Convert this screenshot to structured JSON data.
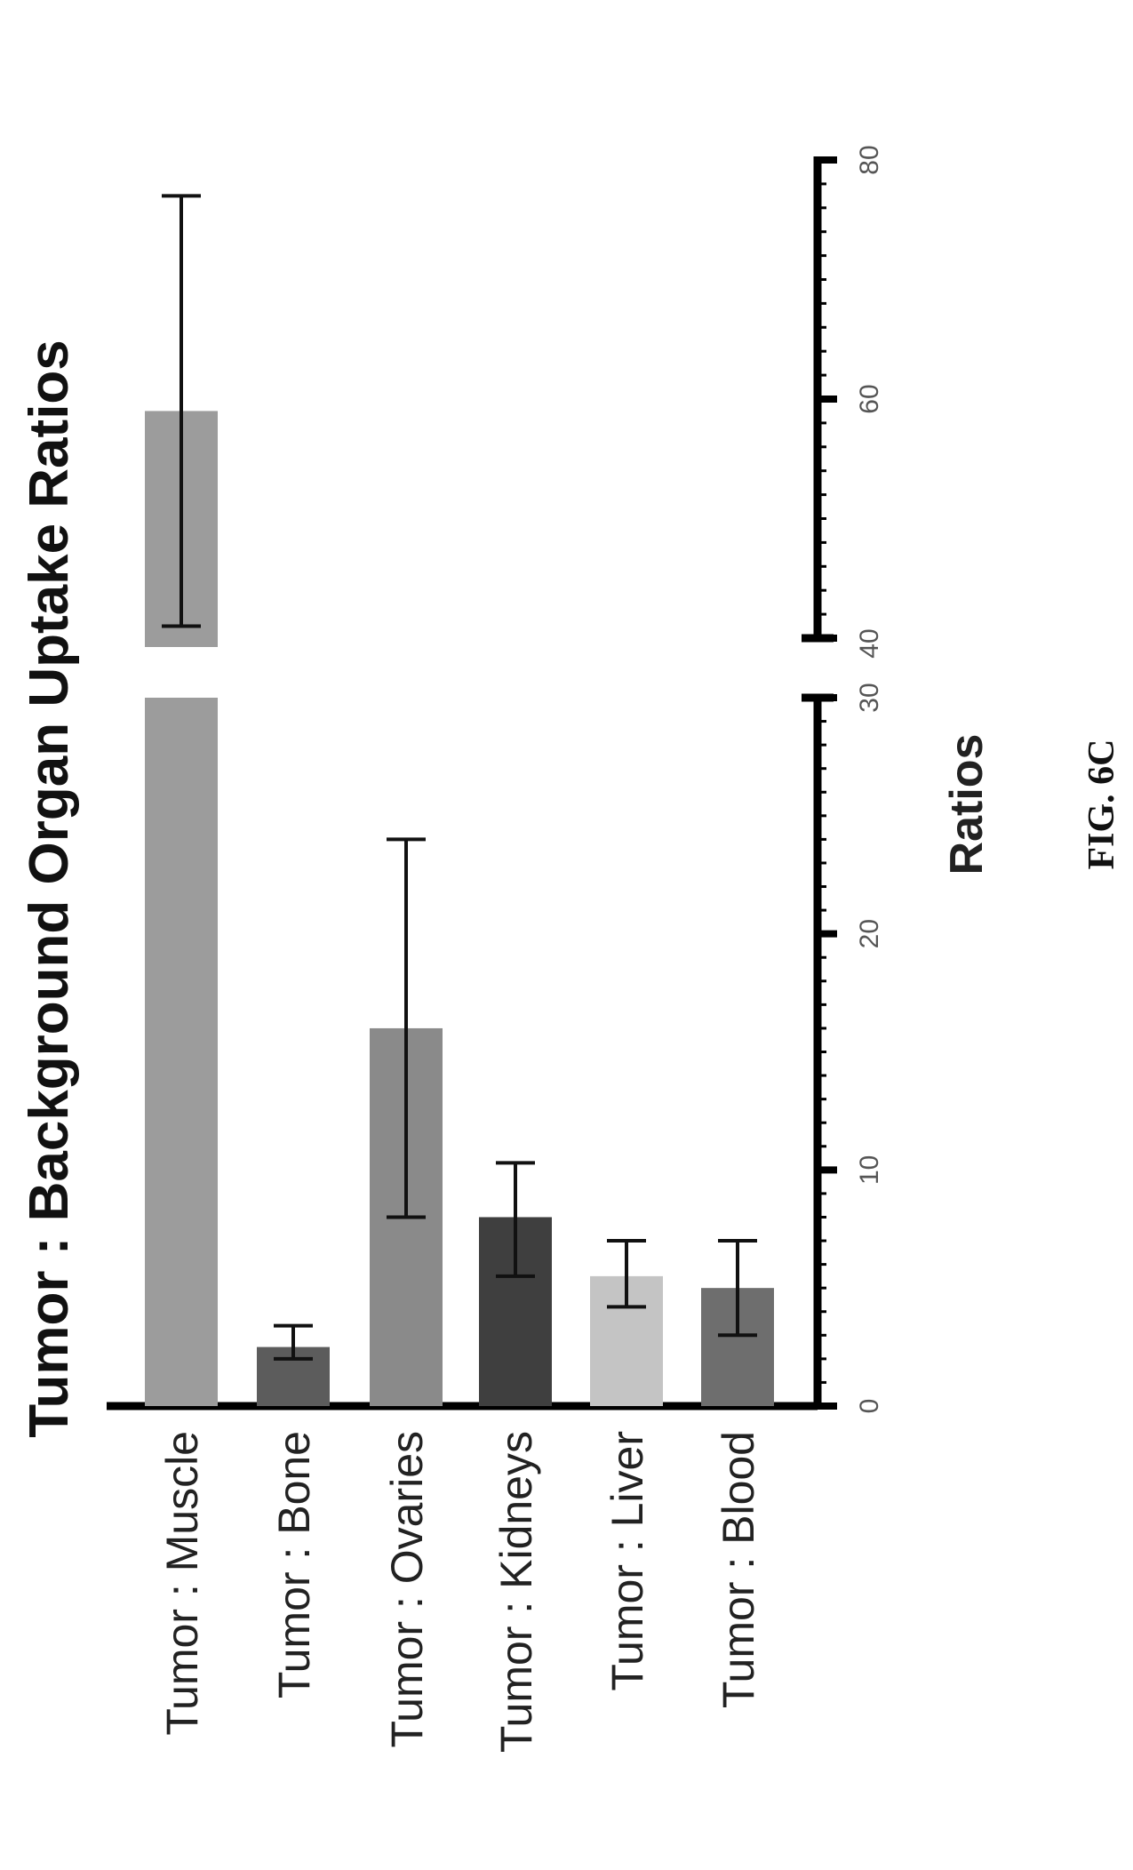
{
  "chart_data": {
    "type": "bar",
    "orientation": "horizontal",
    "rotated": "figure rotated 90 degrees counter-clockwise",
    "title": "Tumor : Background Organ Uptake Ratios",
    "xlabel": "Ratios",
    "ylabel": "",
    "categories": [
      "Tumor : Muscle",
      "Tumor : Bone",
      "Tumor : Ovaries",
      "Tumor : Kidneys",
      "Tumor : Liver",
      "Tumor : Blood"
    ],
    "values": [
      59,
      2.5,
      16,
      8,
      5.5,
      5
    ],
    "error_low": [
      41,
      2.0,
      8,
      5.5,
      4.2,
      3.0
    ],
    "error_high": [
      77,
      3.4,
      24,
      10.3,
      7.0,
      7.0
    ],
    "bar_colors": [
      "#9c9c9c",
      "#5c5c5c",
      "#8a8a8a",
      "#3f3f3f",
      "#c4c4c4",
      "#6e6e6e"
    ],
    "axis_break": [
      30,
      40
    ],
    "xlim": [
      0,
      80
    ],
    "tick_labels": [
      "0",
      "10",
      "20",
      "30",
      "40",
      "60",
      "80"
    ],
    "tick_values": [
      0,
      10,
      20,
      30,
      40,
      60,
      80
    ],
    "grid": false,
    "legend": "none"
  },
  "figure_caption": "FIG. 6C"
}
